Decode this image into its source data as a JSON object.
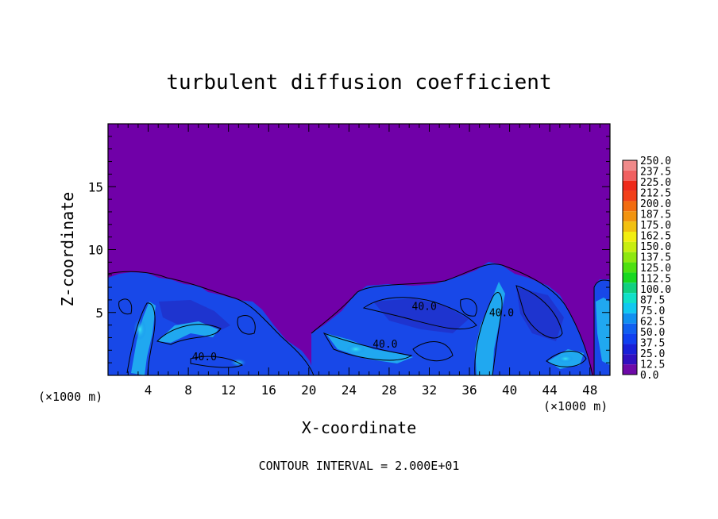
{
  "chart_data": {
    "type": "heatmap",
    "title": "turbulent diffusion coefficient",
    "xlabel": "X-coordinate",
    "ylabel": "Z-coordinate",
    "x_units_left": "(×1000 m)",
    "x_units_right": "(×1000 m)",
    "xlim": [
      0,
      50
    ],
    "ylim": [
      0,
      20
    ],
    "xticks": [
      4,
      8,
      12,
      16,
      20,
      24,
      28,
      32,
      36,
      40,
      44,
      48
    ],
    "yticks": [
      5,
      10,
      15
    ],
    "footer": "CONTOUR INTERVAL = 2.000E+01",
    "contour_labels": [
      {
        "text": "40.0",
        "x": 31.5,
        "z": 5.2
      },
      {
        "text": "40.0",
        "x": 39.2,
        "z": 4.7
      },
      {
        "text": "40.0",
        "x": 27.6,
        "z": 2.2
      },
      {
        "text": "40.0",
        "x": 9.6,
        "z": 1.2
      }
    ],
    "colorbar": {
      "levels": [
        "250.0",
        "237.5",
        "225.0",
        "212.5",
        "200.0",
        "187.5",
        "175.0",
        "162.5",
        "150.0",
        "137.5",
        "125.0",
        "112.5",
        "100.0",
        "87.5",
        "75.0",
        "62.5",
        "50.0",
        "37.5",
        "25.0",
        "12.5",
        "0.0"
      ],
      "colors": [
        "#f08a8a",
        "#f06060",
        "#ee2a1a",
        "#f2401a",
        "#f26c10",
        "#f29410",
        "#f2c010",
        "#f2ee10",
        "#c8ee10",
        "#8ee810",
        "#4ee010",
        "#18d820",
        "#10d080",
        "#10e0c8",
        "#10c8f0",
        "#1090f0",
        "#1060f0",
        "#1040f0",
        "#1820d8",
        "#3010c0",
        "#6e0aa8"
      ]
    },
    "background_color": "#7000a8"
  }
}
